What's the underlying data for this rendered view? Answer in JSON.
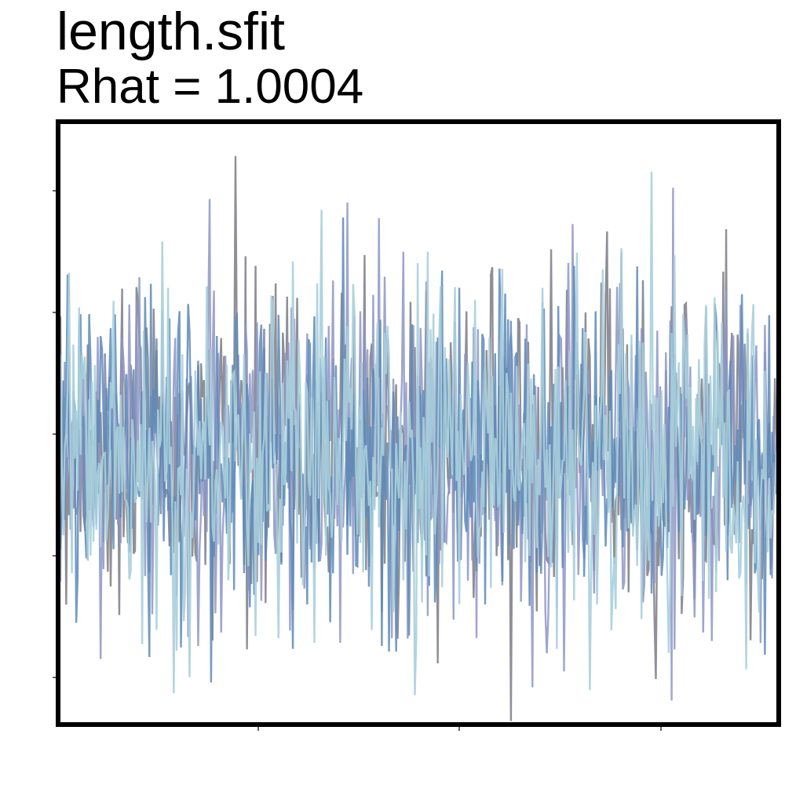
{
  "chart_data": {
    "type": "line",
    "title": "length.sfit",
    "subtitle": "Rhat = 1.0004",
    "xlabel": "",
    "ylabel": "",
    "x_ticks_visible": 3,
    "y_ticks_visible": 5,
    "tick_labels_shown": false,
    "grid": false,
    "legend": "none",
    "n_chains": 4,
    "iterations_per_chain": 500,
    "ylim": [
      0,
      1
    ],
    "mean": 0.45,
    "sd": 0.14,
    "colors": [
      "#7b7b86",
      "#8e96c4",
      "#5d8ab7",
      "#a9cfdc"
    ]
  }
}
